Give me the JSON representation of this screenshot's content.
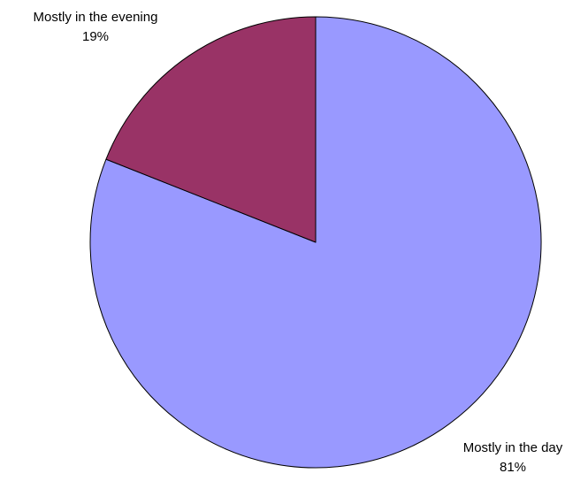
{
  "chart_data": {
    "type": "pie",
    "slices": [
      {
        "label": "Mostly in the day",
        "value": 81,
        "value_label": "81%",
        "color": "#9999ff"
      },
      {
        "label": "Mostly in the evening",
        "value": 19,
        "value_label": "19%",
        "color": "#993366"
      }
    ],
    "start_angle_deg": 0,
    "direction": "clockwise",
    "legend": "none"
  }
}
